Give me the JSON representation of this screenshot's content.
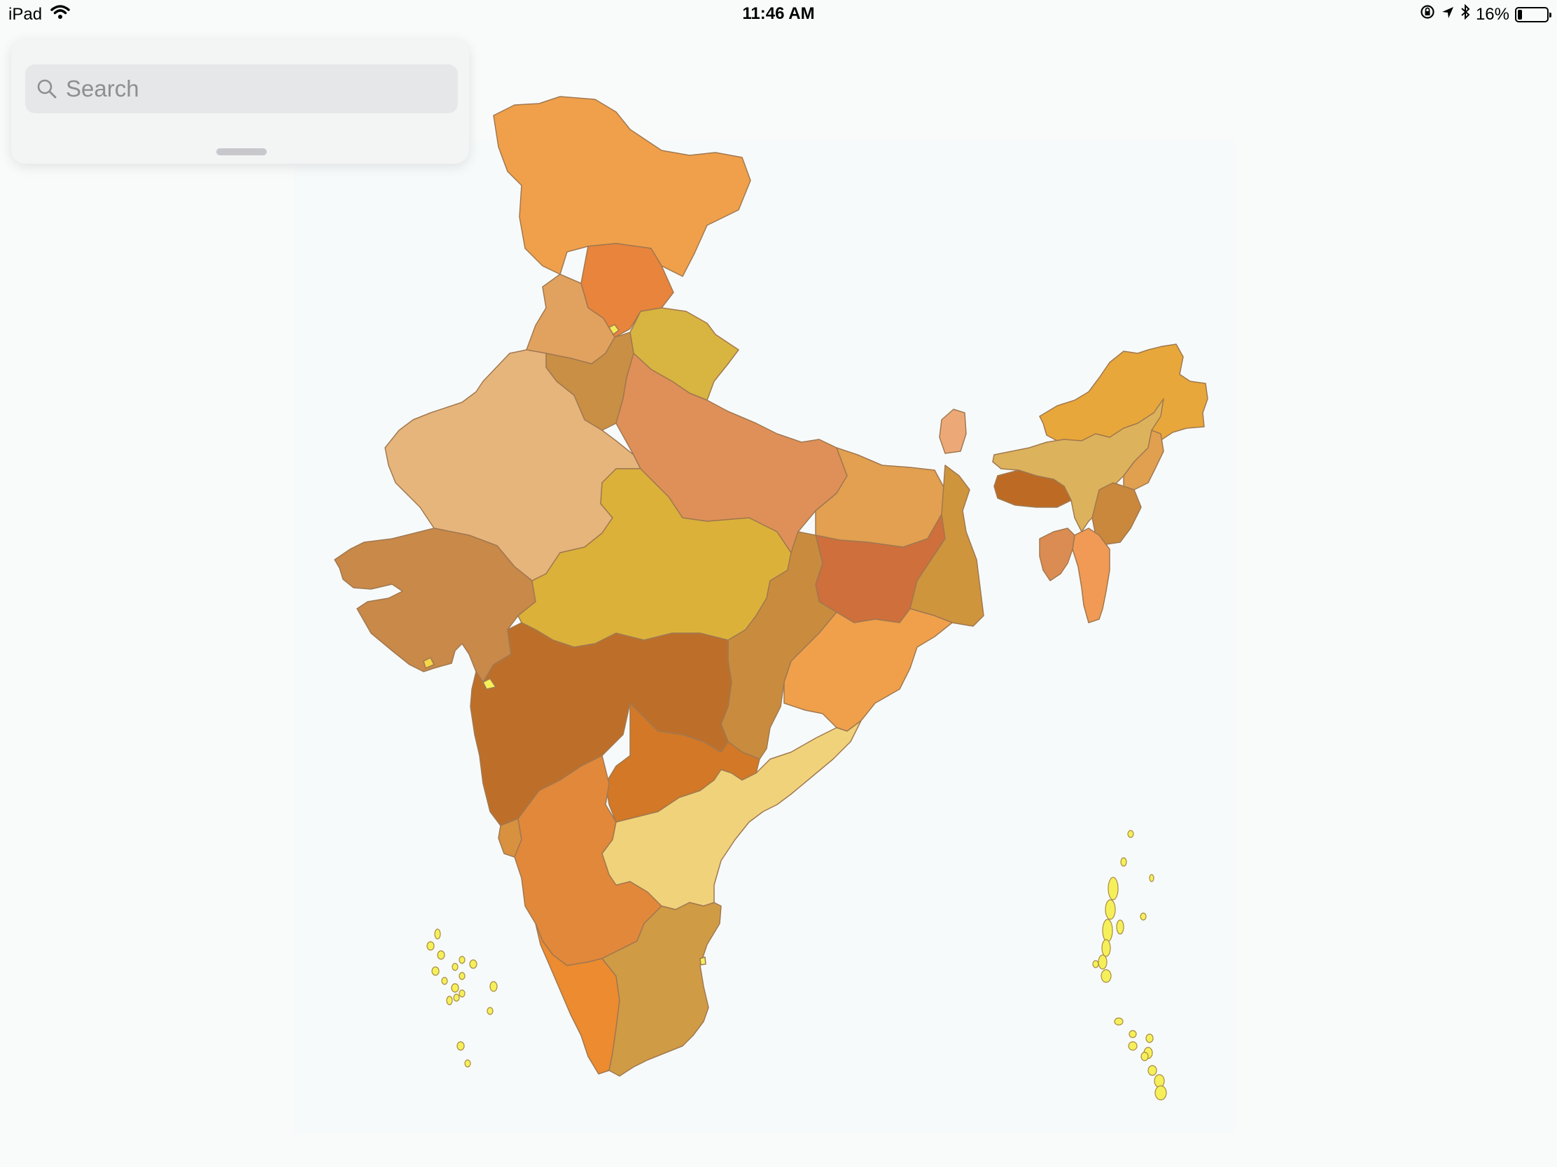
{
  "status_bar": {
    "device": "iPad",
    "time": "11:46 AM",
    "battery_text": "16%",
    "battery_level": 0.16
  },
  "search": {
    "placeholder": "Search",
    "icon": "magnifying-glass-icon"
  },
  "map": {
    "type": "choropleth",
    "region": "India",
    "palette": [
      "#f0a04b",
      "#e8843c",
      "#d8b441",
      "#e2a25f",
      "#c98f45",
      "#e6b57c",
      "#df9058",
      "#dbb13a",
      "#c98949",
      "#bd6f2a",
      "#cf6f3c",
      "#f0d27b",
      "#d09b45",
      "#e8a73a",
      "#dcb35c",
      "#f5f05a"
    ]
  }
}
